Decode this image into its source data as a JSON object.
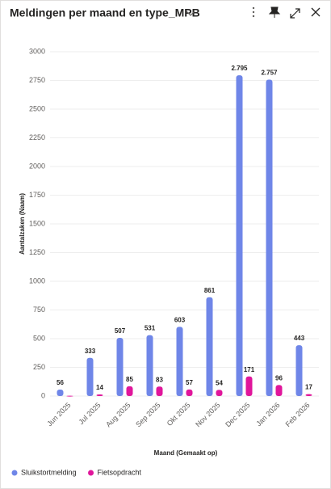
{
  "chart_data": {
    "type": "bar",
    "title": "Meldingen per maand en type_MPB",
    "x_label": "Maand (Gemaakt op)",
    "y_label": "Aantalzaken (Naam)",
    "categories": [
      "Jun 2025",
      "Jul 2025",
      "Aug 2025",
      "Sep 2025",
      "Okt 2025",
      "Nov 2025",
      "Dec 2025",
      "Jan 2026",
      "Feb 2026"
    ],
    "series": [
      {
        "name": "Sluikstortmelding",
        "color": "#6f86e8",
        "values": [
          56,
          333,
          507,
          531,
          603,
          861,
          2795,
          2757,
          443
        ],
        "value_labels": [
          "56",
          "333",
          "507",
          "531",
          "603",
          "861",
          "2.795",
          "2.757",
          "443"
        ]
      },
      {
        "name": "Fietsopdracht",
        "color": "#e0169b",
        "values": [
          3,
          14,
          85,
          83,
          57,
          54,
          171,
          96,
          17
        ],
        "value_labels": [
          null,
          "14",
          "85",
          "83",
          "57",
          "54",
          "171",
          "96",
          "17"
        ]
      }
    ],
    "ylim": [
      0,
      3000
    ],
    "yticks": [
      0,
      250,
      500,
      750,
      1000,
      1250,
      1500,
      1750,
      2000,
      2250,
      2500,
      2750,
      3000
    ],
    "grid": true,
    "legend": "bottom-left"
  }
}
